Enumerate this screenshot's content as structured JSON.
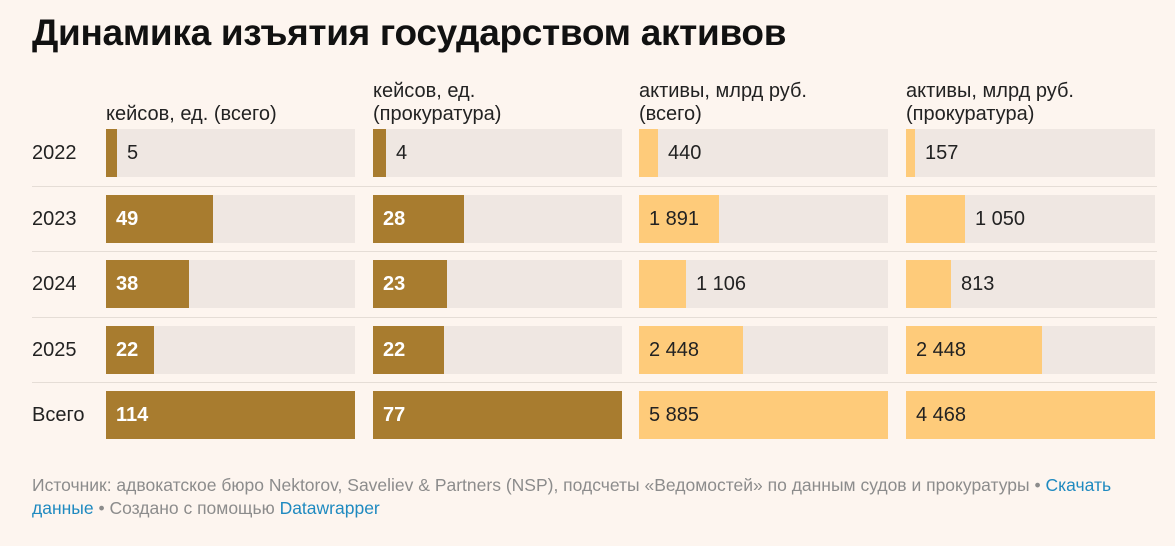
{
  "title": "Динамика изъятия государством активов",
  "colors": {
    "dark_bar": "#a87c2f",
    "light_bar": "#fecb7a",
    "track": "#efe7e2",
    "background": "#fdf5ef",
    "link": "#1f8ac0"
  },
  "chart_data": {
    "type": "table",
    "categories": [
      "2022",
      "2023",
      "2024",
      "2025",
      "Всего"
    ],
    "series": [
      {
        "name": "кейсов, ед. (всего)",
        "header_lines": [
          "кейсов, ед. (всего)"
        ],
        "values": [
          5,
          49,
          38,
          22,
          114
        ],
        "labels": [
          "5",
          "49",
          "38",
          "22",
          "114"
        ],
        "max": 114,
        "color": "#a87c2f"
      },
      {
        "name": "кейсов, ед. (прокуратура)",
        "header_lines": [
          "кейсов, ед.",
          "(прокуратура)"
        ],
        "values": [
          4,
          28,
          23,
          22,
          77
        ],
        "labels": [
          "4",
          "28",
          "23",
          "22",
          "77"
        ],
        "max": 77,
        "color": "#a87c2f"
      },
      {
        "name": "активы, млрд руб. (всего)",
        "header_lines": [
          "активы, млрд руб.",
          "(всего)"
        ],
        "values": [
          440,
          1891,
          1106,
          2448,
          5885
        ],
        "labels": [
          "440",
          "1 891",
          "1 106",
          "2 448",
          "5 885"
        ],
        "max": 5885,
        "color": "#fecb7a"
      },
      {
        "name": "активы, млрд руб. (прокуратура)",
        "header_lines": [
          "активы, млрд руб.",
          "(прокуратура)"
        ],
        "values": [
          157,
          1050,
          813,
          2448,
          4468
        ],
        "labels": [
          "157",
          "1 050",
          "813",
          "2 448",
          "4 468"
        ],
        "max": 4468,
        "color": "#fecb7a"
      }
    ]
  },
  "footer": {
    "source": "Источник: адвокатское бюро Nektorov, Saveliev & Partners (NSP), подсчеты «Ведомостей» по данным судов и прокуратуры",
    "separator": " • ",
    "download_link": "Скачать данные",
    "created_with": "Создано с помощью ",
    "datawrapper_link": "Datawrapper"
  }
}
